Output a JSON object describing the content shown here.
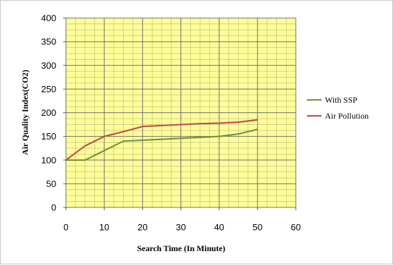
{
  "chart_data": {
    "type": "line",
    "title": "",
    "xlabel": "Search Time (In Minute)",
    "ylabel": "Air Quality Index(CO2)",
    "xlim": [
      0,
      60
    ],
    "ylim": [
      0,
      400
    ],
    "xticks": [
      0,
      10,
      20,
      30,
      40,
      50,
      60
    ],
    "yticks": [
      0,
      50,
      100,
      150,
      200,
      250,
      300,
      350,
      400
    ],
    "grid": true,
    "minor_grid": true,
    "plot_background": "#ffff99",
    "legend_position": "right",
    "series": [
      {
        "name": "With SSP",
        "color": "#77933c",
        "x": [
          0,
          5,
          10,
          15,
          20,
          25,
          30,
          35,
          40,
          45,
          50
        ],
        "y": [
          100,
          100,
          120,
          140,
          142,
          144,
          146,
          148,
          150,
          155,
          165
        ]
      },
      {
        "name": "Air Pollution",
        "color": "#c0504d",
        "x": [
          0,
          5,
          10,
          15,
          20,
          25,
          30,
          35,
          40,
          45,
          50
        ],
        "y": [
          100,
          130,
          150,
          160,
          171,
          173,
          175,
          177,
          178,
          180,
          185
        ]
      }
    ]
  }
}
